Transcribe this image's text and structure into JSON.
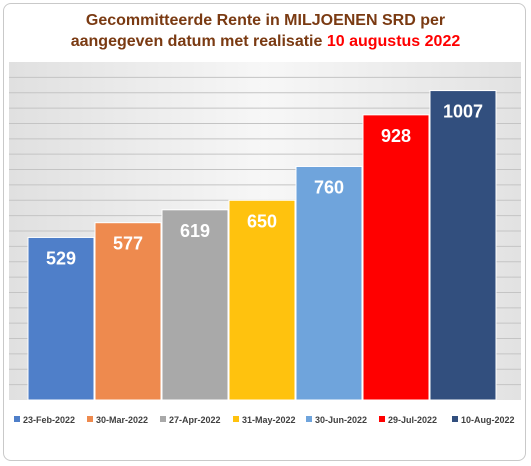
{
  "chart_data": {
    "type": "bar",
    "title_line1": "Gecommitteerde Rente in MILJOENEN SRD per",
    "title_line2": "aangegeven datum met realisatie",
    "title_highlight": "10 augustus 2022",
    "categories": [
      "23-Feb-2022",
      "30-Mar-2022",
      "27-Apr-2022",
      "31-May-2022",
      "30-Jun-2022",
      "29-Jul-2022",
      "10-Aug-2022"
    ],
    "values": [
      529,
      577,
      619,
      650,
      760,
      928,
      1007
    ],
    "colors": [
      "#4f7fc9",
      "#ee8a4e",
      "#a9a9a9",
      "#ffc20e",
      "#6fa4dc",
      "#ff0000",
      "#324f7e"
    ],
    "data_label_colors": [
      "#ffffff",
      "#ffffff",
      "#ffffff",
      "#ffffff",
      "#ffffff",
      "#ffffff",
      "#ffffff"
    ],
    "ylim": [
      0,
      1100
    ],
    "grid": true,
    "legend_position": "bottom",
    "xlabel": "",
    "ylabel": ""
  }
}
